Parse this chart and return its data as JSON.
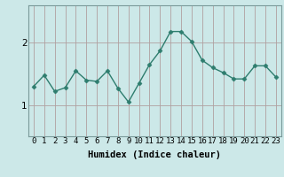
{
  "x": [
    0,
    1,
    2,
    3,
    4,
    5,
    6,
    7,
    8,
    9,
    10,
    11,
    12,
    13,
    14,
    15,
    16,
    17,
    18,
    19,
    20,
    21,
    22,
    23
  ],
  "y": [
    1.3,
    1.48,
    1.22,
    1.28,
    1.55,
    1.4,
    1.38,
    1.55,
    1.27,
    1.05,
    1.35,
    1.65,
    1.87,
    2.18,
    2.18,
    2.02,
    1.72,
    1.6,
    1.52,
    1.42,
    1.42,
    1.63,
    1.63,
    1.45
  ],
  "line_color": "#2e7d6e",
  "marker": "D",
  "marker_size": 2.5,
  "bg_color": "#cce8e8",
  "plot_bg_color": "#cce8e8",
  "grid_color_v": "#b0cccc",
  "grid_color_h": "#b0a0a0",
  "xlabel": "Humidex (Indice chaleur)",
  "xlabel_fontsize": 7.5,
  "yticks": [
    1,
    2
  ],
  "ylim": [
    0.5,
    2.6
  ],
  "xlim": [
    -0.5,
    23.5
  ],
  "tick_fontsize": 6.5,
  "linewidth": 1.0
}
